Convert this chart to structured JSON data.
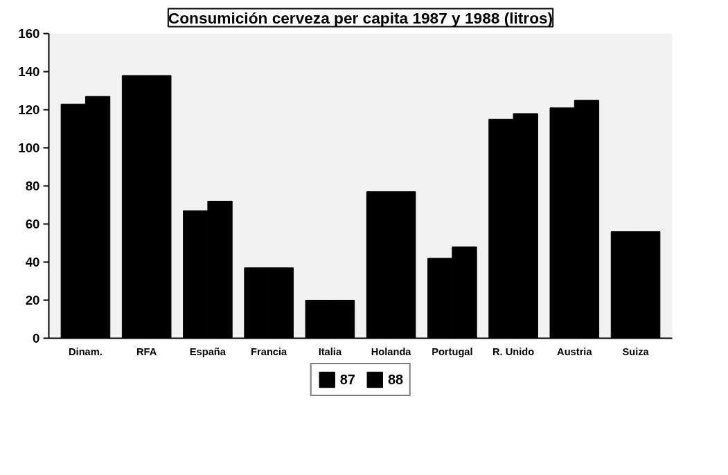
{
  "chart_data": {
    "type": "bar",
    "title": "Consumición cerveza per capita 1987 y 1988 (litros)",
    "categories": [
      "Dinam.",
      "RFA",
      "España",
      "Francia",
      "Italia",
      "Holanda",
      "Portugal",
      "R. Unido",
      "Austria",
      "Suiza"
    ],
    "series": [
      {
        "name": "87",
        "color": "#000000",
        "values": [
          123,
          138,
          67,
          37,
          20,
          77,
          42,
          115,
          121,
          56
        ]
      },
      {
        "name": "88",
        "color": "#000000",
        "values": [
          127,
          138,
          72,
          37,
          20,
          77,
          48,
          118,
          125,
          56
        ]
      }
    ],
    "ylim": [
      0,
      160
    ],
    "yticks": [
      0,
      20,
      40,
      60,
      80,
      100,
      120,
      140,
      160
    ],
    "grid": false,
    "legend": "bottom"
  }
}
